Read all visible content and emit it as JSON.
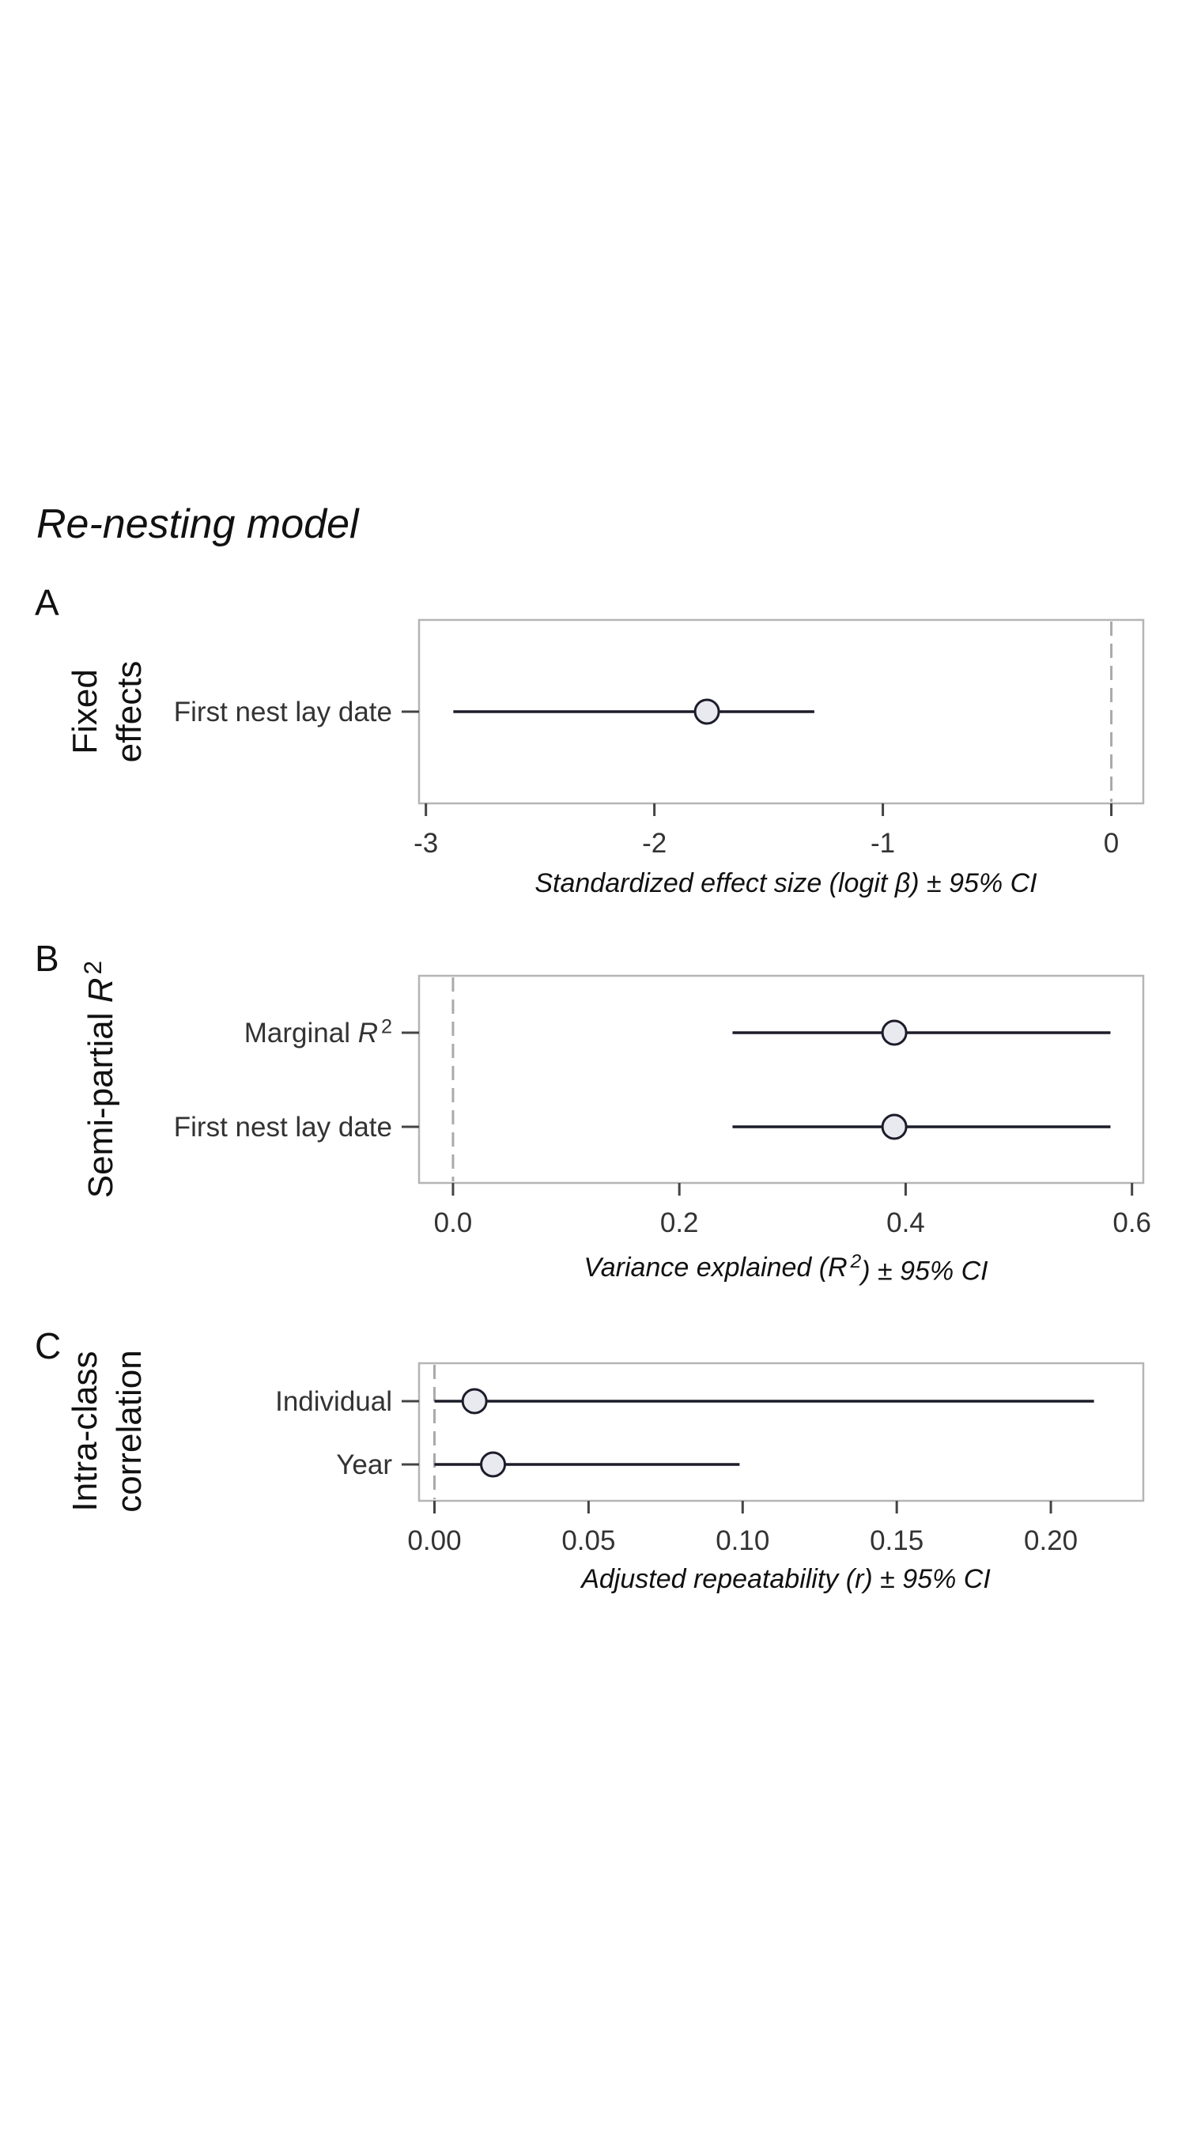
{
  "title": "Re-nesting model",
  "chart_data": [
    {
      "type": "forest",
      "panel": "A",
      "group_label_lines": [
        "Fixed",
        "effects"
      ],
      "xlabel": "Standardized effect size (logit β) ± 95% CI",
      "xlim": [
        -3.03,
        0.14
      ],
      "xticks": [
        -3,
        -2,
        -1,
        0
      ],
      "xtick_labels": [
        "-3",
        "-2",
        "-1",
        "0"
      ],
      "reference_line": 0,
      "ylim": [
        0.5,
        1.5
      ],
      "rows": [
        {
          "label": "First nest lay date",
          "estimate": -1.77,
          "lower": -2.88,
          "upper": -1.3
        }
      ]
    },
    {
      "type": "forest",
      "panel": "B",
      "group_label": "Semi-partial R²",
      "xlabel": "Variance explained (R²) ± 95% CI",
      "xlim": [
        -0.03,
        0.61
      ],
      "xticks": [
        0.0,
        0.2,
        0.4,
        0.6
      ],
      "xtick_labels": [
        "0.0",
        "0.2",
        "0.4",
        "0.6"
      ],
      "reference_line": 0,
      "ylim": [
        0.4,
        2.6
      ],
      "rows": [
        {
          "label": "Marginal R²",
          "estimate": 0.39,
          "lower": 0.247,
          "upper": 0.581
        },
        {
          "label": "First nest lay date",
          "estimate": 0.39,
          "lower": 0.247,
          "upper": 0.581
        }
      ]
    },
    {
      "type": "forest",
      "panel": "C",
      "group_label_lines": [
        "Intra-class",
        "correlation"
      ],
      "xlabel": "Adjusted repeatability (r) ± 95% CI",
      "xlim": [
        -0.005,
        0.23
      ],
      "xticks": [
        0.0,
        0.05,
        0.1,
        0.15,
        0.2
      ],
      "xtick_labels": [
        "0.00",
        "0.05",
        "0.10",
        "0.15",
        "0.20"
      ],
      "reference_line": 0,
      "ylim": [
        0.4,
        2.6
      ],
      "rows": [
        {
          "label": "Individual",
          "estimate": 0.013,
          "lower": 0.0,
          "upper": 0.214
        },
        {
          "label": "Year",
          "estimate": 0.019,
          "lower": 0.0,
          "upper": 0.099
        }
      ]
    }
  ]
}
